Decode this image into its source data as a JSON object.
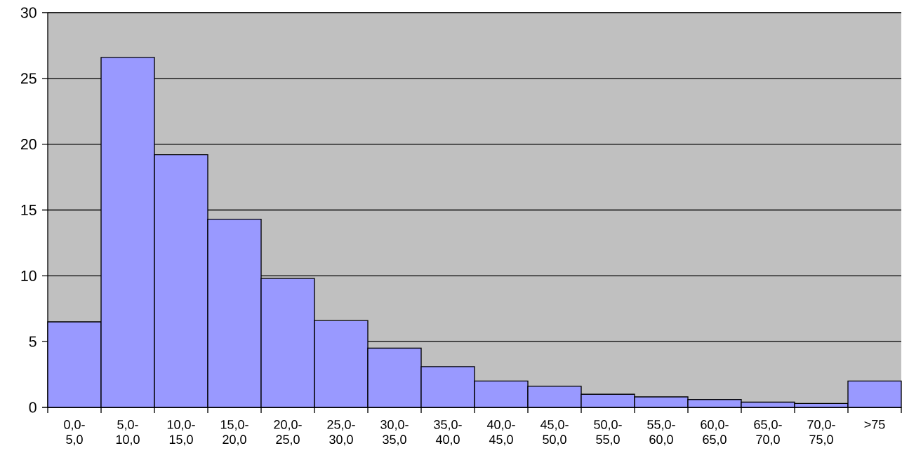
{
  "chart_data": {
    "type": "bar",
    "categories": [
      "0,0-5,0",
      "5,0-10,0",
      "10,0-15,0",
      "15,0-20,0",
      "20,0-25,0",
      "25,0-30,0",
      "30,0-35,0",
      "35,0-40,0",
      "40,0-45,0",
      "45,0-50,0",
      "50,0-55,0",
      "55,0-60,0",
      "60,0-65,0",
      "65,0-70,0",
      "70,0-75,0",
      ">75"
    ],
    "values": [
      6.5,
      26.6,
      19.2,
      14.3,
      9.8,
      6.6,
      4.5,
      3.1,
      2.0,
      1.6,
      1.0,
      0.8,
      0.6,
      0.4,
      0.3,
      2.0
    ],
    "color": "#9999ff",
    "ylim": [
      0,
      30
    ],
    "yticks": [
      0,
      5,
      10,
      15,
      20,
      25,
      30
    ],
    "grid": "y"
  }
}
